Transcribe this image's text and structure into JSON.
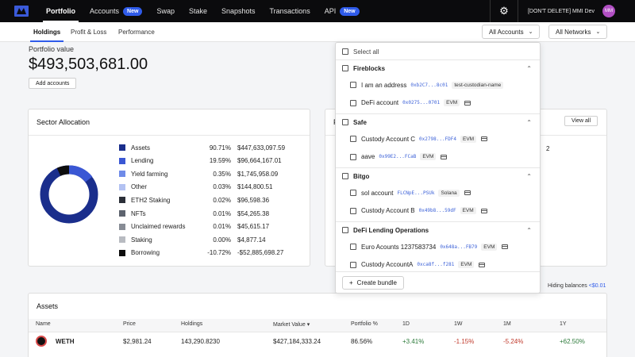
{
  "nav": {
    "items": [
      {
        "label": "Portfolio"
      },
      {
        "label": "Accounts",
        "badge": "New"
      },
      {
        "label": "Swap"
      },
      {
        "label": "Stake"
      },
      {
        "label": "Snapshots"
      },
      {
        "label": "Transactions"
      },
      {
        "label": "API",
        "badge": "New"
      }
    ],
    "account_name": "[DON'T DELETE] MMI Dev",
    "avatar_initials": "MM"
  },
  "subnav": {
    "tabs": [
      {
        "label": "Holdings"
      },
      {
        "label": "Profit & Loss"
      },
      {
        "label": "Performance"
      }
    ],
    "accounts_filter": "All Accounts",
    "networks_filter": "All Networks"
  },
  "portfolio": {
    "label": "Portfolio value",
    "value": "$493,503,681.00",
    "add_accounts": "Add accounts"
  },
  "sector": {
    "title": "Sector Allocation",
    "rows": [
      {
        "name": "Assets",
        "pct": "90.71%",
        "value": "$447,633,097.59",
        "color": "#1a2e8c"
      },
      {
        "name": "Lending",
        "pct": "19.59%",
        "value": "$96,664,167.01",
        "color": "#3a57d4"
      },
      {
        "name": "Yield farming",
        "pct": "0.35%",
        "value": "$1,745,958.09",
        "color": "#6f8be8"
      },
      {
        "name": "Other",
        "pct": "0.03%",
        "value": "$144,800.51",
        "color": "#b3c2f2"
      },
      {
        "name": "ETH2 Staking",
        "pct": "0.02%",
        "value": "$96,598.36",
        "color": "#2b2f38"
      },
      {
        "name": "NFTs",
        "pct": "0.01%",
        "value": "$54,265.38",
        "color": "#5d636e"
      },
      {
        "name": "Unclaimed rewards",
        "pct": "0.01%",
        "value": "$45,615.17",
        "color": "#878c95"
      },
      {
        "name": "Staking",
        "pct": "0.00%",
        "value": "$4,877.14",
        "color": "#b8bbc1"
      },
      {
        "name": "Borrowing",
        "pct": "-10.72%",
        "value": "-$52,885,698.27",
        "color": "#0d0d0d"
      }
    ]
  },
  "second_card": {
    "title_fragment": "P",
    "view_all": "View all",
    "partial_text": "2"
  },
  "hiding": {
    "label": "Hiding balances",
    "threshold": "<$0.01"
  },
  "assets": {
    "title": "Assets",
    "headers": [
      "Name",
      "Price",
      "Holdings",
      "Market Value",
      "Portfolio %",
      "1D",
      "1W",
      "1M",
      "1Y"
    ],
    "rows": [
      {
        "name": "WETH",
        "price": "$2,981.24",
        "holdings": "143,290.8230",
        "market_value": "$427,184,333.24",
        "portfolio_pct": "86.56%",
        "d1": "+3.41%",
        "w1": "-1.15%",
        "m1": "-5.24%",
        "y1": "+62.50%"
      }
    ]
  },
  "accounts_dropdown": {
    "select_all": "Select all",
    "groups": [
      {
        "name": "Fireblocks",
        "accounts": [
          {
            "name": "I am an address",
            "address": "0xb2C7...8c01",
            "tag": "test-custodian-name"
          },
          {
            "name": "DeFi account",
            "address": "0x0275...0701",
            "tag": "EVM",
            "wallet_icon": "wallet-icon"
          }
        ]
      },
      {
        "name": "Safe",
        "accounts": [
          {
            "name": "Custody Account C",
            "address": "0x2798...FDF4",
            "tag": "EVM",
            "wallet_icon": "wallet-icon"
          },
          {
            "name": "aave",
            "address": "0x99E2...FCaB",
            "tag": "EVM",
            "wallet_icon": "wallet-icon"
          }
        ]
      },
      {
        "name": "Bitgo",
        "accounts": [
          {
            "name": "sol account",
            "address": "FLCNpE...PSUk",
            "tag": "Solana",
            "wallet_icon": "wallet-icon"
          },
          {
            "name": "Custody Account B",
            "address": "0x49b8...59dF",
            "tag": "EVM",
            "wallet_icon": "wallet-icon"
          }
        ]
      },
      {
        "name": "DeFi Lending Operations",
        "accounts": [
          {
            "name": "Euro Acounts 1237583734",
            "address": "0x648a...FB79",
            "tag": "EVM",
            "wallet_icon": "wallet-icon"
          },
          {
            "name": "Custody AccountA",
            "address": "0xca8f...f281",
            "tag": "EVM",
            "wallet_icon": "wallet-icon"
          }
        ]
      }
    ],
    "create_bundle": "Create bundle"
  }
}
